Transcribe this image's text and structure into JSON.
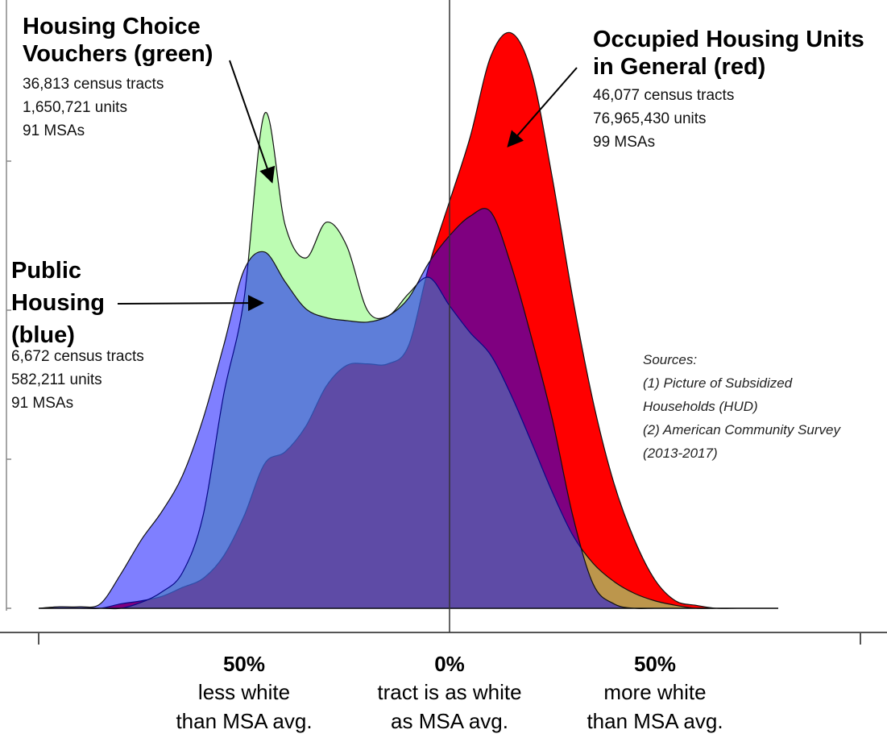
{
  "chart_data": {
    "type": "area",
    "x": [
      -100,
      -95,
      -90,
      -85,
      -80,
      -75,
      -70,
      -65,
      -60,
      -55,
      -50,
      -45,
      -40,
      -35,
      -30,
      -25,
      -20,
      -15,
      -10,
      -5,
      0,
      5,
      10,
      15,
      20,
      25,
      30,
      35,
      40,
      45,
      50,
      55,
      60,
      65,
      70,
      75,
      80
    ],
    "series": [
      {
        "name": "Occupied Housing Units in General (red)",
        "color": "#ff0000",
        "opacity": 1,
        "stats": [
          "46,077 census tracts",
          "76,965,430 units",
          "99 MSAs"
        ],
        "values": [
          0,
          0,
          0,
          0,
          0.03,
          0.05,
          0.08,
          0.14,
          0.2,
          0.35,
          0.62,
          0.97,
          1.05,
          1.22,
          1.49,
          1.63,
          1.64,
          1.64,
          1.76,
          2.3,
          2.73,
          3.16,
          3.7,
          3.86,
          3.59,
          2.89,
          2.08,
          1.38,
          0.84,
          0.46,
          0.19,
          0.05,
          0.02,
          0,
          0,
          0,
          0
        ]
      },
      {
        "name": "Housing Choice Vouchers (green)",
        "color": "#8ffa7f",
        "opacity": 0.6,
        "stats": [
          "36,813 census tracts",
          "1,650,721 units",
          "91 MSAs"
        ],
        "values": [
          0,
          0,
          0,
          0,
          0,
          0.04,
          0.11,
          0.24,
          0.62,
          1.43,
          2.08,
          3.32,
          2.57,
          2.35,
          2.59,
          2.43,
          2.0,
          1.96,
          2.11,
          2.22,
          2.03,
          1.85,
          1.7,
          1.43,
          1.11,
          0.78,
          0.49,
          0.3,
          0.18,
          0.1,
          0.05,
          0.02,
          0,
          0,
          0,
          0,
          0
        ]
      },
      {
        "name": "Public Housing (blue)",
        "color": "#0000ff",
        "opacity": 0.5,
        "stats": [
          "6,672 census tracts",
          "582,211 units",
          "91 MSAs"
        ],
        "values": [
          0,
          0.01,
          0.01,
          0.03,
          0.23,
          0.46,
          0.65,
          0.89,
          1.27,
          1.76,
          2.27,
          2.39,
          2.19,
          2.01,
          1.95,
          1.93,
          1.92,
          1.96,
          2.08,
          2.32,
          2.5,
          2.63,
          2.66,
          2.3,
          1.81,
          1.27,
          0.62,
          0.16,
          0.03,
          0,
          0,
          0,
          0,
          0,
          0,
          0,
          0
        ]
      }
    ],
    "xlim": [
      -100,
      100
    ],
    "xticks": [
      {
        "value": -50,
        "label": "50%"
      },
      {
        "value": 0,
        "label": "0%"
      },
      {
        "value": 50,
        "label": "50%"
      }
    ],
    "xtick_captions": [
      [
        "less white",
        "than MSA avg."
      ],
      [
        "tract is as white",
        "as MSA avg."
      ],
      [
        "more white",
        "than MSA avg."
      ]
    ],
    "x_edge_ticks": [
      -100,
      100
    ],
    "ylim": [
      0,
      3.9
    ],
    "ytick_marks": [
      0,
      1,
      2,
      3
    ],
    "sources": [
      "Sources:",
      "(1) Picture of Subsidized",
      "Households (HUD)",
      "(2) American Community Survey",
      "(2013-2017)"
    ]
  }
}
